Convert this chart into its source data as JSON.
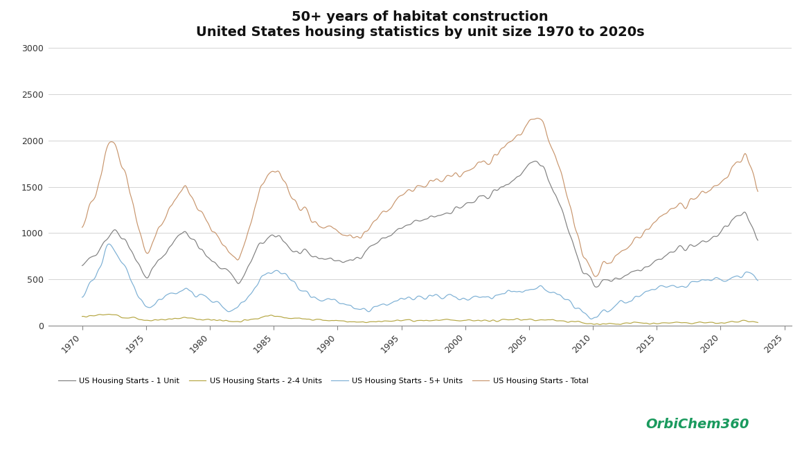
{
  "title_line1": "50+ years of habitat construction",
  "title_line2": "United States housing statistics by unit size 1970 to 2020s",
  "ylim": [
    0,
    3000
  ],
  "yticks": [
    0,
    500,
    1000,
    1500,
    2000,
    2500,
    3000
  ],
  "background_color": "#ffffff",
  "grid_color": "#cccccc",
  "colors": {
    "1unit": "#7f7f7f",
    "2_4unit": "#b5a642",
    "5plus": "#7bafd4",
    "total": "#c8956c"
  },
  "legend_labels": [
    "US Housing Starts - 1 Unit",
    "US Housing Starts - 2-4 Units",
    "US Housing Starts - 5+ Units",
    "US Housing Starts - Total"
  ],
  "title_fontsize": 14,
  "watermark": "OrbiChem360"
}
